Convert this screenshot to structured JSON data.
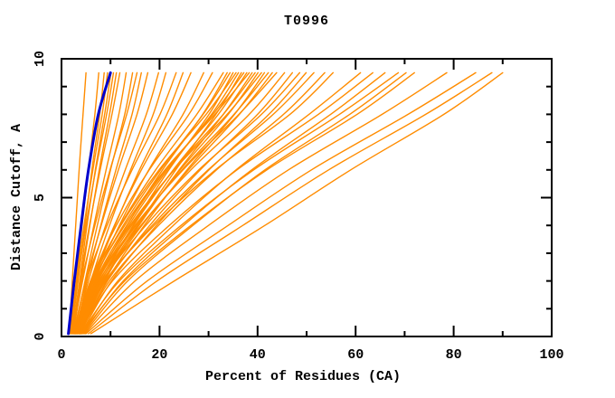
{
  "chart_data": {
    "type": "line",
    "title": "T0996",
    "xlabel": "Percent of Residues (CA)",
    "ylabel": "Distance Cutoff, A",
    "xlim": [
      0,
      100
    ],
    "ylim": [
      0,
      10
    ],
    "x_major_ticks": [
      0,
      20,
      40,
      60,
      80,
      100
    ],
    "x_minor_ticks": [
      10,
      30,
      50,
      70,
      90
    ],
    "y_major_ticks": [
      0,
      5,
      10
    ],
    "y_minor_ticks": [
      1,
      2,
      3,
      4,
      6,
      7,
      8,
      9
    ],
    "grid": false,
    "legend": "none",
    "background_color": "#ffffff",
    "axis_color": "#000000",
    "series_color": "#ff8c00",
    "highlight_color": "#0000cd",
    "cutoffs": [
      0.1,
      2,
      4,
      6,
      8,
      9.5
    ],
    "highlight_series": [
      1.4,
      2.6,
      4.0,
      5.5,
      7.5,
      10.0
    ],
    "orange_series": [
      [
        1.6,
        2.2,
        2.9,
        3.6,
        4.4,
        5.0
      ],
      [
        1.8,
        3.0,
        4.2,
        5.5,
        6.8,
        7.6
      ],
      [
        2.0,
        3.4,
        4.8,
        6.2,
        7.8,
        8.7
      ],
      [
        1.7,
        3.1,
        4.6,
        6.4,
        8.3,
        9.4
      ],
      [
        2.2,
        3.7,
        5.2,
        6.9,
        8.8,
        10.1
      ],
      [
        1.9,
        3.3,
        5.0,
        7.0,
        9.2,
        10.6
      ],
      [
        2.4,
        4.0,
        5.8,
        7.7,
        9.8,
        11.2
      ],
      [
        2.1,
        3.8,
        5.7,
        7.9,
        10.3,
        11.9
      ],
      [
        2.3,
        4.3,
        6.6,
        9.1,
        11.7,
        13.2
      ],
      [
        2.6,
        4.8,
        7.3,
        10.0,
        12.9,
        14.5
      ],
      [
        2.2,
        4.1,
        6.8,
        9.9,
        13.3,
        15.4
      ],
      [
        2.8,
        5.2,
        8.0,
        11.1,
        14.4,
        16.3
      ],
      [
        2.5,
        4.9,
        8.1,
        11.6,
        15.4,
        17.6
      ],
      [
        2.7,
        5.5,
        9.0,
        13.0,
        17.3,
        19.8
      ],
      [
        3.0,
        6.0,
        9.8,
        14.1,
        18.7,
        21.3
      ],
      [
        2.4,
        5.1,
        9.3,
        14.4,
        20.1,
        23.4
      ],
      [
        3.2,
        6.5,
        10.9,
        15.9,
        21.5,
        24.8
      ],
      [
        2.9,
        6.2,
        10.8,
        16.3,
        22.6,
        26.4
      ],
      [
        3.1,
        6.8,
        11.8,
        17.8,
        24.8,
        29.0
      ],
      [
        2.6,
        5.9,
        11.2,
        17.9,
        26.0,
        30.8
      ],
      [
        2.5,
        6.3,
        12.0,
        19.2,
        27.6,
        33.0
      ],
      [
        3.3,
        7.5,
        13.4,
        20.6,
        28.8,
        33.8
      ],
      [
        2.8,
        6.6,
        12.6,
        20.2,
        28.9,
        34.4
      ],
      [
        3.6,
        8.2,
        14.6,
        21.9,
        30.1,
        35.0
      ],
      [
        2.7,
        6.1,
        12.1,
        19.9,
        29.5,
        35.6
      ],
      [
        3.1,
        7.2,
        13.7,
        21.6,
        30.6,
        36.1
      ],
      [
        3.8,
        8.8,
        15.6,
        23.3,
        31.5,
        36.7
      ],
      [
        2.9,
        6.9,
        13.3,
        21.3,
        30.9,
        37.2
      ],
      [
        3.4,
        7.8,
        14.7,
        22.8,
        32.0,
        37.8
      ],
      [
        2.6,
        6.4,
        12.9,
        21.1,
        31.3,
        38.3
      ],
      [
        3.7,
        8.5,
        15.8,
        24.0,
        33.0,
        38.9
      ],
      [
        3.0,
        7.4,
        14.3,
        22.9,
        33.0,
        39.5
      ],
      [
        3.5,
        8.1,
        15.5,
        24.2,
        34.0,
        40.1
      ],
      [
        2.8,
        7.0,
        14.0,
        23.0,
        33.8,
        40.8
      ],
      [
        3.9,
        9.2,
        16.9,
        25.6,
        35.3,
        41.4
      ],
      [
        3.2,
        7.7,
        15.2,
        24.6,
        35.2,
        42.2
      ],
      [
        3.6,
        8.6,
        16.4,
        25.9,
        36.3,
        43.0
      ],
      [
        2.9,
        7.3,
        15.0,
        24.8,
        36.2,
        43.9
      ],
      [
        3.3,
        8.0,
        16.2,
        26.4,
        38.3,
        45.5
      ],
      [
        3.8,
        9.4,
        18.0,
        28.3,
        40.0,
        47.1
      ],
      [
        3.1,
        8.3,
        17.2,
        28.0,
        40.8,
        48.6
      ],
      [
        4.0,
        10.2,
        19.4,
        30.1,
        42.3,
        49.9
      ],
      [
        3.5,
        9.0,
        18.5,
        29.9,
        43.2,
        51.5
      ],
      [
        3.7,
        9.8,
        19.8,
        31.6,
        45.3,
        53.7
      ],
      [
        3.2,
        8.9,
        18.9,
        31.4,
        46.6,
        55.4
      ],
      [
        4.2,
        11.5,
        22.8,
        35.6,
        50.5,
        61.0
      ],
      [
        3.6,
        10.4,
        22.0,
        35.8,
        52.4,
        63.5
      ],
      [
        4.4,
        12.6,
        24.9,
        38.8,
        54.9,
        66.0
      ],
      [
        3.9,
        11.8,
        24.4,
        39.2,
        56.7,
        68.7
      ],
      [
        4.6,
        13.5,
        26.8,
        41.5,
        58.8,
        70.3
      ],
      [
        4.1,
        12.9,
        26.4,
        41.9,
        60.3,
        72.0
      ],
      [
        4.8,
        15.0,
        30.0,
        46.3,
        65.4,
        78.6
      ],
      [
        5.0,
        17.5,
        34.0,
        51.0,
        70.7,
        84.5
      ],
      [
        5.5,
        19.5,
        37.0,
        54.5,
        74.3,
        87.8
      ],
      [
        6.0,
        23.0,
        41.5,
        59.0,
        78.0,
        90.0
      ]
    ]
  }
}
